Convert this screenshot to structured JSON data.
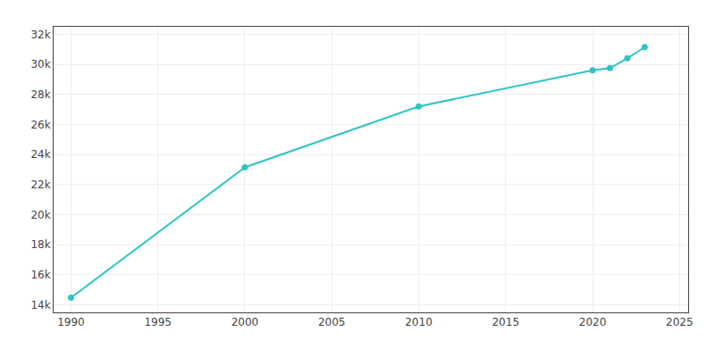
{
  "chart_data": {
    "type": "line",
    "x": [
      1990,
      2000,
      2010,
      2020,
      2021,
      2022,
      2023
    ],
    "values": [
      14480,
      23150,
      27200,
      29600,
      29750,
      30400,
      31150
    ],
    "color": "#2EC4C4",
    "marker": "circle",
    "line_style": "solid",
    "xlim": [
      1989,
      2025.5
    ],
    "ylim": [
      13500,
      32500
    ],
    "xticks": [
      1990,
      1995,
      2000,
      2005,
      2010,
      2015,
      2020,
      2025
    ],
    "yticks": [
      {
        "value": 14000,
        "label": "14k"
      },
      {
        "value": 16000,
        "label": "16k"
      },
      {
        "value": 18000,
        "label": "18k"
      },
      {
        "value": 20000,
        "label": "20k"
      },
      {
        "value": 22000,
        "label": "22k"
      },
      {
        "value": 24000,
        "label": "24k"
      },
      {
        "value": 26000,
        "label": "26k"
      },
      {
        "value": 28000,
        "label": "28k"
      },
      {
        "value": 30000,
        "label": "30k"
      },
      {
        "value": 32000,
        "label": "32k"
      }
    ],
    "grid": true
  }
}
